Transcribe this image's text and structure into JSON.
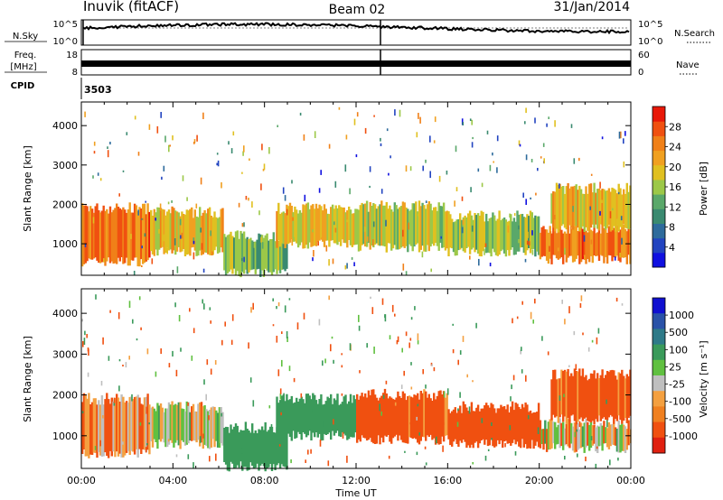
{
  "header": {
    "site": "Inuvik (fitACF)",
    "beam": "Beam 02",
    "date": "31/Jan/2014"
  },
  "noise_panel": {
    "left_label": "N.Sky",
    "left_ticks": [
      "10^5",
      "10^0"
    ],
    "right_ticks": [
      "10^5",
      "10^0"
    ],
    "right_label": "N.Search"
  },
  "freq_panel": {
    "left_label_1": "Freq.",
    "left_label_2": "[MHz]",
    "left_ticks": [
      "18",
      "8"
    ],
    "right_ticks": [
      "60",
      "0"
    ],
    "right_label": "Nave"
  },
  "cpid": {
    "label": "CPID",
    "value": "3503"
  },
  "colors": {
    "power_scale": [
      "#1010e0",
      "#2244c0",
      "#2e6b9c",
      "#3a8a70",
      "#5aa86a",
      "#9cc848",
      "#e0c020",
      "#f0a020",
      "#f08018",
      "#f05010",
      "#e81808"
    ],
    "velocity_scale": [
      "#1010d0",
      "#2a52a8",
      "#2e7a88",
      "#3a9a5a",
      "#60c040",
      "#bfbfbf",
      "#f4a040",
      "#f08020",
      "#f05010",
      "#e02010"
    ]
  },
  "chart_data": [
    {
      "type": "heatmap",
      "quantity": "Power",
      "x": [
        "00:00",
        "04:00",
        "08:00",
        "12:00",
        "16:00",
        "20:00",
        "00:00"
      ],
      "xlim": [
        0,
        24
      ],
      "ylabel": "Slant Range [km]",
      "y_ticks": [
        1000,
        2000,
        3000,
        4000
      ],
      "ylim": [
        200,
        4600
      ],
      "colorbar_label": "Power [dB]",
      "colorbar_ticks": [
        4,
        8,
        12,
        16,
        20,
        24,
        28
      ],
      "colorbar_range": [
        0,
        32
      ],
      "bands": [
        {
          "x": [
            0.0,
            3.0
          ],
          "y": [
            550,
            1900
          ],
          "value": 26
        },
        {
          "x": [
            3.0,
            6.2
          ],
          "y": [
            800,
            1800
          ],
          "value": 20
        },
        {
          "x": [
            6.2,
            9.0
          ],
          "y": [
            250,
            1200
          ],
          "value": 14
        },
        {
          "x": [
            8.5,
            12.0
          ],
          "y": [
            1000,
            1900
          ],
          "value": 20
        },
        {
          "x": [
            12.0,
            16.0
          ],
          "y": [
            900,
            1950
          ],
          "value": 18
        },
        {
          "x": [
            16.0,
            20.0
          ],
          "y": [
            800,
            1700
          ],
          "value": 16
        },
        {
          "x": [
            20.0,
            24.0
          ],
          "y": [
            600,
            1400
          ],
          "value": 26
        },
        {
          "x": [
            20.5,
            24.0
          ],
          "y": [
            1400,
            2400
          ],
          "value": 20
        }
      ]
    },
    {
      "type": "heatmap",
      "quantity": "Velocity",
      "x": [
        "00:00",
        "04:00",
        "08:00",
        "12:00",
        "16:00",
        "20:00",
        "00:00"
      ],
      "xlim": [
        0,
        24
      ],
      "xlabel": "Time UT",
      "ylabel": "Slant Range [km]",
      "y_ticks": [
        1000,
        2000,
        3000,
        4000
      ],
      "ylim": [
        200,
        4600
      ],
      "colorbar_label": "Velocity [m s⁻¹]",
      "colorbar_ticks": [
        1000,
        500,
        100,
        25,
        -25,
        -100,
        -500,
        -1000
      ],
      "bands": [
        {
          "x": [
            0.0,
            3.0
          ],
          "y": [
            550,
            1900
          ],
          "value": -100
        },
        {
          "x": [
            3.0,
            6.2
          ],
          "y": [
            800,
            1700
          ],
          "value": 0
        },
        {
          "x": [
            6.2,
            9.0
          ],
          "y": [
            250,
            1200
          ],
          "value": 300
        },
        {
          "x": [
            8.5,
            12.0
          ],
          "y": [
            1000,
            1900
          ],
          "value": 300
        },
        {
          "x": [
            12.0,
            16.0
          ],
          "y": [
            900,
            2000
          ],
          "value": -200
        },
        {
          "x": [
            16.0,
            20.0
          ],
          "y": [
            800,
            1700
          ],
          "value": -300
        },
        {
          "x": [
            20.0,
            24.0
          ],
          "y": [
            700,
            1300
          ],
          "value": 0
        },
        {
          "x": [
            20.5,
            24.0
          ],
          "y": [
            1400,
            2500
          ],
          "value": -200
        }
      ]
    }
  ]
}
